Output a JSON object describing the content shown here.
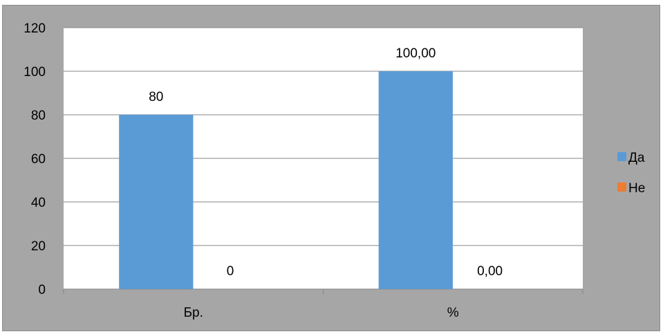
{
  "chart_data": {
    "type": "bar",
    "categories": [
      "Бр.",
      "%"
    ],
    "series": [
      {
        "name": "Да",
        "values": [
          80,
          100
        ],
        "labels": [
          "80",
          "100,00"
        ],
        "color": "#5b9bd5"
      },
      {
        "name": "Не",
        "values": [
          0,
          0
        ],
        "labels": [
          "0",
          "0,00"
        ],
        "color": "#ed7d31"
      }
    ],
    "ylim": [
      0,
      120
    ],
    "yticks": [
      "0",
      "20",
      "40",
      "60",
      "80",
      "100",
      "120"
    ],
    "grid": true,
    "legend_position": "right",
    "plot_background": "#ffffff",
    "frame_background": "#a6a6a6"
  }
}
